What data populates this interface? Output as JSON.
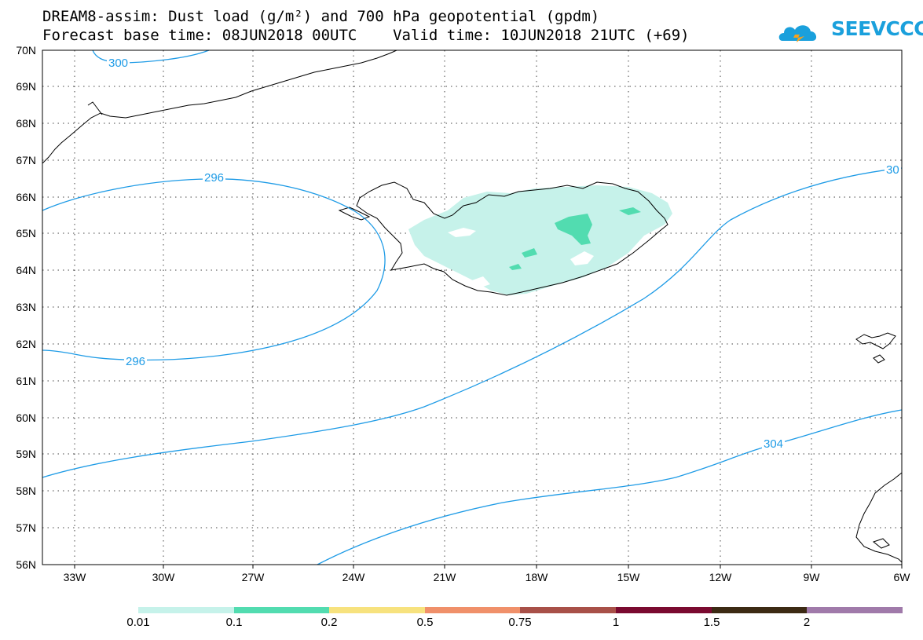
{
  "header": {
    "line1": "DREAM8-assim: Dust load (g/m²) and 700 hPa geopotential (gpdm)",
    "line2": "Forecast base time: 08JUN2018 00UTC    Valid time: 10JUN2018 21UTC (+69)"
  },
  "logo": {
    "text": "SEEVCCC",
    "icon": "cloud-icon",
    "color": "#1aa0dc"
  },
  "map": {
    "lat_labels": [
      "70N",
      "69N",
      "68N",
      "67N",
      "66N",
      "65N",
      "64N",
      "63N",
      "62N",
      "61N",
      "60N",
      "59N",
      "58N",
      "57N",
      "56N"
    ],
    "lon_labels": [
      "33W",
      "30W",
      "27W",
      "24W",
      "21W",
      "18W",
      "15W",
      "12W",
      "9W",
      "6W"
    ],
    "contour_labels": [
      "300",
      "296",
      "296",
      "30",
      "304"
    ],
    "contour_color": "#1e9be6",
    "dust_light_color": "#c6f2ea",
    "dust_medium_color": "#52dcb0"
  },
  "colorbar": {
    "labels": [
      "0.01",
      "0.1",
      "0.2",
      "0.5",
      "0.75",
      "1",
      "1.5",
      "2"
    ],
    "colors": [
      "#c6f2ea",
      "#52dcb0",
      "#f7e27e",
      "#f0906a",
      "#a85048",
      "#7a0a30",
      "#3c2a14",
      "#a07aaa"
    ]
  }
}
